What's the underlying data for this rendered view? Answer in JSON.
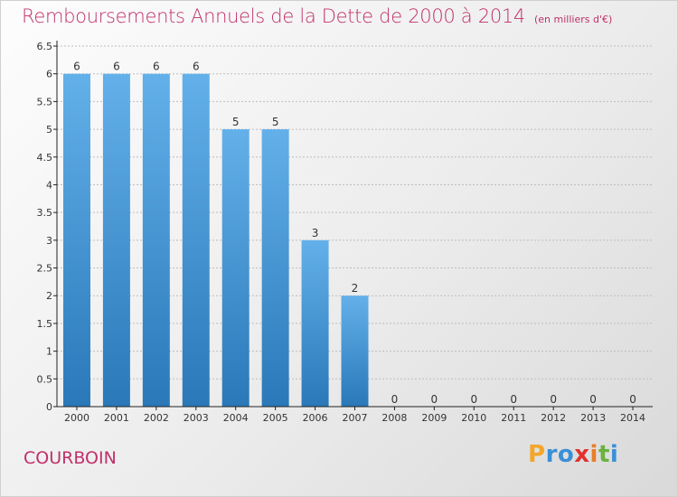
{
  "title": "Remboursements Annuels de la Dette de 2000 à 2014",
  "unit_note": "(en milliers d'€)",
  "location": "COURBOIN",
  "logo": {
    "letters": [
      "P",
      "r",
      "o",
      "x",
      "i",
      "t",
      "i"
    ],
    "colors": [
      "#f2a62a",
      "#3b8fd6",
      "#3b8fd6",
      "#e0322d",
      "#e87f2a",
      "#6ab23e",
      "#3b8fd6"
    ]
  },
  "colors": {
    "bar_light": "#63b0ea",
    "bar_dark": "#2a78b8",
    "title": "#c0306a",
    "grid": "#bdbdbd",
    "axis": "#222222"
  },
  "chart_data": {
    "type": "bar",
    "categories": [
      "2000",
      "2001",
      "2002",
      "2003",
      "2004",
      "2005",
      "2006",
      "2007",
      "2008",
      "2009",
      "2010",
      "2011",
      "2012",
      "2013",
      "2014"
    ],
    "values": [
      6,
      6,
      6,
      6,
      5,
      5,
      3,
      2,
      0,
      0,
      0,
      0,
      0,
      0,
      0
    ],
    "data_labels": [
      "6",
      "6",
      "6",
      "6",
      "5",
      "5",
      "3",
      "2",
      "0",
      "0",
      "0",
      "0",
      "0",
      "0",
      "0"
    ],
    "yticks": [
      "0",
      "0.5",
      "1",
      "1.5",
      "2",
      "2.5",
      "3",
      "3.5",
      "4",
      "4.5",
      "5",
      "5.5",
      "6",
      "6.5"
    ],
    "ylim": [
      0,
      6.5
    ],
    "grid": true,
    "legend": "none"
  }
}
